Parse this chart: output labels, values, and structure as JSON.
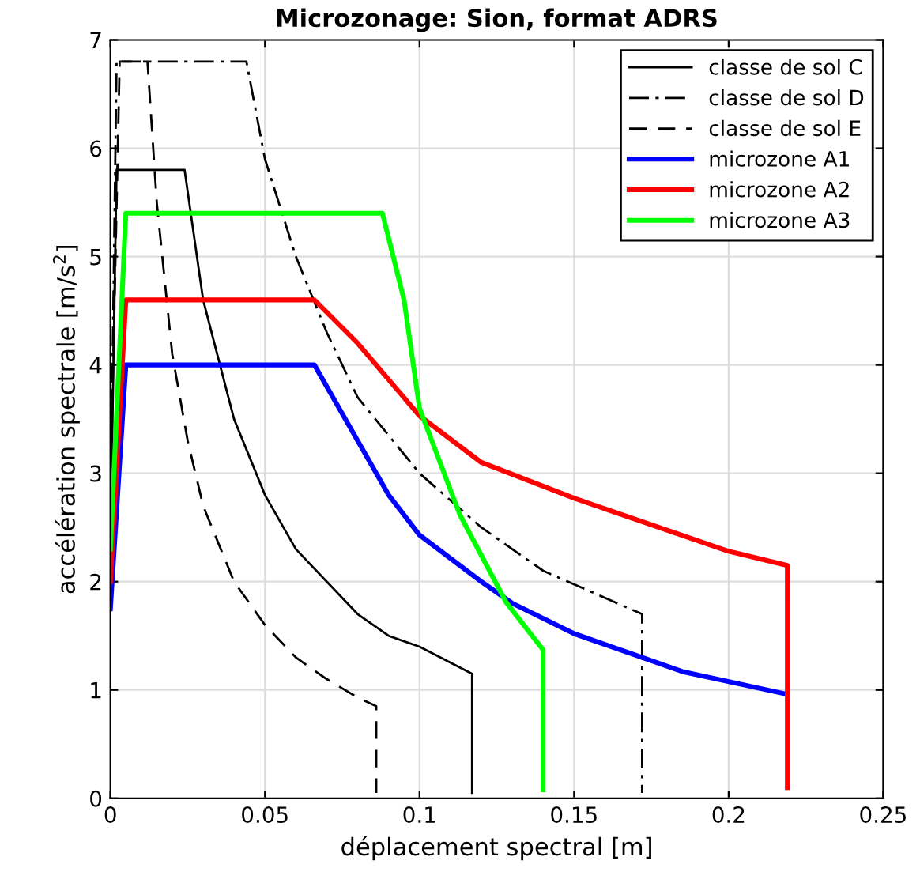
{
  "chart_data": {
    "type": "line",
    "title": "Microzonage: Sion, format ADRS",
    "xlabel": "déplacement spectral [m]",
    "ylabel": "accélération spectrale [m/s$^{2}$]",
    "xlim": [
      0,
      0.25
    ],
    "ylim": [
      0,
      7
    ],
    "xticks": [
      0,
      0.05,
      0.1,
      0.15,
      0.2,
      0.25
    ],
    "yticks": [
      0,
      1,
      2,
      3,
      4,
      5,
      6,
      7
    ],
    "grid": true,
    "legend": "top right",
    "series": [
      {
        "name": "classe de sol C",
        "color": "#000000",
        "line_style": "solid",
        "x": [
          0,
          0.002,
          0.024,
          0.03,
          0.04,
          0.05,
          0.06,
          0.07,
          0.08,
          0.09,
          0.1,
          0.117,
          0.117
        ],
        "values": [
          2.3,
          5.8,
          5.8,
          4.6,
          3.5,
          2.8,
          2.3,
          2.0,
          1.7,
          1.5,
          1.4,
          1.15,
          0.05
        ]
      },
      {
        "name": "classe de sol D",
        "color": "#000000",
        "line_style": "dashdot",
        "x": [
          0,
          0.002,
          0.044,
          0.05,
          0.06,
          0.07,
          0.08,
          0.1,
          0.12,
          0.14,
          0.16,
          0.172,
          0.172
        ],
        "values": [
          2.5,
          6.8,
          6.8,
          5.9,
          5.0,
          4.3,
          3.7,
          3.0,
          2.5,
          2.1,
          1.85,
          1.7,
          0.05
        ]
      },
      {
        "name": "classe de sol E",
        "color": "#000000",
        "line_style": "dashed",
        "x": [
          0,
          0.003,
          0.012,
          0.015,
          0.02,
          0.025,
          0.03,
          0.04,
          0.05,
          0.06,
          0.07,
          0.08,
          0.086,
          0.086
        ],
        "values": [
          2.8,
          6.8,
          6.8,
          5.5,
          4.1,
          3.3,
          2.7,
          2.0,
          1.6,
          1.3,
          1.1,
          0.93,
          0.85,
          0.05
        ]
      },
      {
        "name": "microzone A1",
        "color": "#0000ff",
        "line_style": "solid",
        "x": [
          0,
          0.005,
          0.066,
          0.08,
          0.09,
          0.1,
          0.12,
          0.13,
          0.15,
          0.185,
          0.219
        ],
        "values": [
          1.75,
          4.0,
          4.0,
          3.3,
          2.8,
          2.43,
          2.0,
          1.8,
          1.52,
          1.17,
          0.96
        ]
      },
      {
        "name": "microzone A2",
        "color": "#ff0000",
        "line_style": "solid",
        "x": [
          0,
          0.005,
          0.066,
          0.08,
          0.1,
          0.12,
          0.15,
          0.2,
          0.219,
          0.219
        ],
        "values": [
          2.0,
          4.6,
          4.6,
          4.2,
          3.53,
          3.1,
          2.77,
          2.28,
          2.15,
          0.1
        ]
      },
      {
        "name": "microzone A3",
        "color": "#00ff00",
        "line_style": "solid",
        "x": [
          0,
          0.005,
          0.088,
          0.095,
          0.1,
          0.113,
          0.128,
          0.14,
          0.14
        ],
        "values": [
          2.3,
          5.4,
          5.4,
          4.6,
          3.6,
          2.62,
          1.81,
          1.37,
          0.08
        ]
      }
    ]
  }
}
